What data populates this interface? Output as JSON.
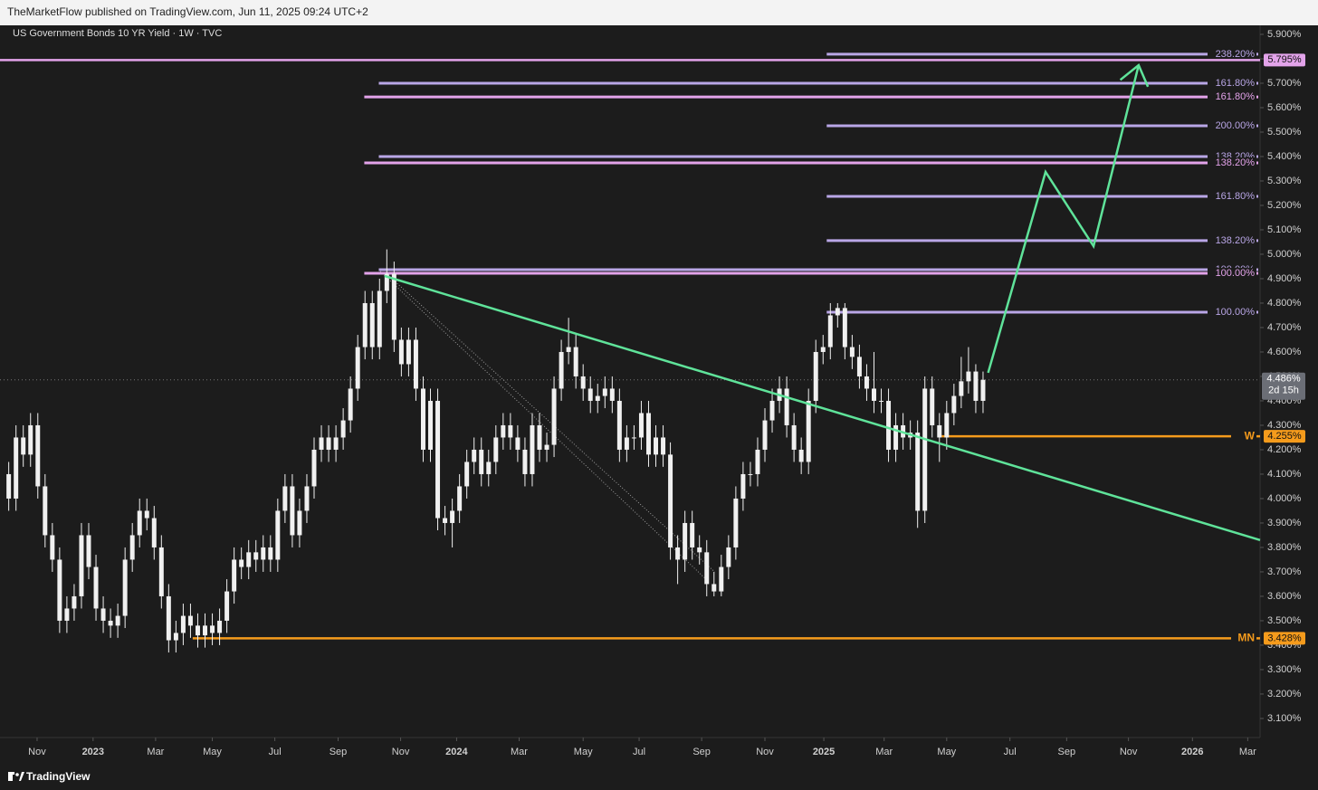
{
  "header": {
    "publisher": "TheMarketFlow published on TradingView.com, Jun 11, 2025 09:24 UTC+2",
    "footer": "TradingView"
  },
  "chart_data": {
    "type": "candlestick",
    "title": "US Government Bonds 10 YR Yield · 1W · TVC",
    "color": "#f0f0f0",
    "candles": [
      [
        4.1,
        4.15,
        3.95,
        4.0
      ],
      [
        4.0,
        4.3,
        3.95,
        4.25
      ],
      [
        4.25,
        4.3,
        4.13,
        4.18
      ],
      [
        4.18,
        4.35,
        4.13,
        4.3
      ],
      [
        4.3,
        4.35,
        4.0,
        4.05
      ],
      [
        4.05,
        4.1,
        3.8,
        3.85
      ],
      [
        3.85,
        3.9,
        3.7,
        3.75
      ],
      [
        3.75,
        3.8,
        3.45,
        3.5
      ],
      [
        3.5,
        3.6,
        3.45,
        3.55
      ],
      [
        3.55,
        3.65,
        3.5,
        3.6
      ],
      [
        3.6,
        3.9,
        3.55,
        3.85
      ],
      [
        3.85,
        3.9,
        3.67,
        3.72
      ],
      [
        3.72,
        3.77,
        3.5,
        3.55
      ],
      [
        3.55,
        3.6,
        3.45,
        3.5
      ],
      [
        3.5,
        3.55,
        3.43,
        3.48
      ],
      [
        3.48,
        3.57,
        3.43,
        3.52
      ],
      [
        3.52,
        3.8,
        3.47,
        3.75
      ],
      [
        3.75,
        3.9,
        3.7,
        3.85
      ],
      [
        3.85,
        4.0,
        3.8,
        3.95
      ],
      [
        3.95,
        4.0,
        3.87,
        3.92
      ],
      [
        3.92,
        3.97,
        3.75,
        3.8
      ],
      [
        3.8,
        3.85,
        3.55,
        3.6
      ],
      [
        3.6,
        3.65,
        3.37,
        3.42
      ],
      [
        3.42,
        3.5,
        3.37,
        3.45
      ],
      [
        3.45,
        3.57,
        3.4,
        3.52
      ],
      [
        3.52,
        3.57,
        3.43,
        3.48
      ],
      [
        3.48,
        3.53,
        3.39,
        3.44
      ],
      [
        3.44,
        3.53,
        3.39,
        3.48
      ],
      [
        3.48,
        3.53,
        3.4,
        3.45
      ],
      [
        3.45,
        3.55,
        3.4,
        3.5
      ],
      [
        3.5,
        3.67,
        3.45,
        3.62
      ],
      [
        3.62,
        3.8,
        3.57,
        3.75
      ],
      [
        3.75,
        3.8,
        3.67,
        3.72
      ],
      [
        3.72,
        3.83,
        3.67,
        3.78
      ],
      [
        3.78,
        3.83,
        3.7,
        3.75
      ],
      [
        3.75,
        3.85,
        3.7,
        3.8
      ],
      [
        3.8,
        3.85,
        3.7,
        3.75
      ],
      [
        3.75,
        4.0,
        3.7,
        3.95
      ],
      [
        3.95,
        4.1,
        3.9,
        4.05
      ],
      [
        4.05,
        4.1,
        3.8,
        3.85
      ],
      [
        3.85,
        4.0,
        3.8,
        3.95
      ],
      [
        3.95,
        4.1,
        3.9,
        4.05
      ],
      [
        4.05,
        4.25,
        4.0,
        4.2
      ],
      [
        4.2,
        4.3,
        4.15,
        4.25
      ],
      [
        4.25,
        4.3,
        4.15,
        4.2
      ],
      [
        4.2,
        4.3,
        4.15,
        4.25
      ],
      [
        4.25,
        4.37,
        4.2,
        4.32
      ],
      [
        4.32,
        4.5,
        4.27,
        4.45
      ],
      [
        4.45,
        4.67,
        4.4,
        4.62
      ],
      [
        4.62,
        4.85,
        4.57,
        4.8
      ],
      [
        4.8,
        4.85,
        4.57,
        4.62
      ],
      [
        4.62,
        4.9,
        4.57,
        4.85
      ],
      [
        4.85,
        5.02,
        4.8,
        4.92
      ],
      [
        4.92,
        4.97,
        4.6,
        4.65
      ],
      [
        4.65,
        4.7,
        4.5,
        4.55
      ],
      [
        4.55,
        4.7,
        4.5,
        4.65
      ],
      [
        4.65,
        4.7,
        4.4,
        4.45
      ],
      [
        4.45,
        4.5,
        4.15,
        4.2
      ],
      [
        4.2,
        4.45,
        4.15,
        4.4
      ],
      [
        4.4,
        4.45,
        3.87,
        3.92
      ],
      [
        3.92,
        3.97,
        3.85,
        3.9
      ],
      [
        3.9,
        4.0,
        3.8,
        3.95
      ],
      [
        3.95,
        4.1,
        3.9,
        4.05
      ],
      [
        4.05,
        4.2,
        4.0,
        4.15
      ],
      [
        4.15,
        4.25,
        4.1,
        4.2
      ],
      [
        4.2,
        4.25,
        4.05,
        4.1
      ],
      [
        4.1,
        4.2,
        4.05,
        4.15
      ],
      [
        4.15,
        4.3,
        4.1,
        4.25
      ],
      [
        4.25,
        4.35,
        4.2,
        4.3
      ],
      [
        4.3,
        4.35,
        4.2,
        4.25
      ],
      [
        4.25,
        4.3,
        4.15,
        4.2
      ],
      [
        4.2,
        4.25,
        4.05,
        4.1
      ],
      [
        4.1,
        4.35,
        4.05,
        4.3
      ],
      [
        4.3,
        4.35,
        4.15,
        4.2
      ],
      [
        4.2,
        4.27,
        4.15,
        4.22
      ],
      [
        4.22,
        4.5,
        4.17,
        4.45
      ],
      [
        4.45,
        4.65,
        4.4,
        4.6
      ],
      [
        4.6,
        4.74,
        4.55,
        4.62
      ],
      [
        4.62,
        4.67,
        4.45,
        4.5
      ],
      [
        4.5,
        4.55,
        4.4,
        4.45
      ],
      [
        4.45,
        4.5,
        4.35,
        4.4
      ],
      [
        4.4,
        4.47,
        4.35,
        4.42
      ],
      [
        4.42,
        4.5,
        4.37,
        4.45
      ],
      [
        4.45,
        4.5,
        4.35,
        4.4
      ],
      [
        4.4,
        4.45,
        4.15,
        4.2
      ],
      [
        4.2,
        4.3,
        4.15,
        4.25
      ],
      [
        4.25,
        4.3,
        4.2,
        4.25
      ],
      [
        4.25,
        4.4,
        4.2,
        4.35
      ],
      [
        4.35,
        4.4,
        4.13,
        4.18
      ],
      [
        4.18,
        4.3,
        4.13,
        4.25
      ],
      [
        4.25,
        4.3,
        4.13,
        4.18
      ],
      [
        4.18,
        4.23,
        3.75,
        3.8
      ],
      [
        3.8,
        3.85,
        3.65,
        3.75
      ],
      [
        3.75,
        3.95,
        3.7,
        3.9
      ],
      [
        3.9,
        3.95,
        3.75,
        3.8
      ],
      [
        3.8,
        3.85,
        3.73,
        3.78
      ],
      [
        3.78,
        3.83,
        3.6,
        3.65
      ],
      [
        3.65,
        3.7,
        3.6,
        3.62
      ],
      [
        3.62,
        3.77,
        3.6,
        3.72
      ],
      [
        3.72,
        3.85,
        3.67,
        3.8
      ],
      [
        3.8,
        4.05,
        3.75,
        4.0
      ],
      [
        4.0,
        4.15,
        3.95,
        4.1
      ],
      [
        4.1,
        4.15,
        4.05,
        4.1
      ],
      [
        4.1,
        4.25,
        4.05,
        4.2
      ],
      [
        4.2,
        4.37,
        4.15,
        4.32
      ],
      [
        4.32,
        4.45,
        4.27,
        4.4
      ],
      [
        4.4,
        4.5,
        4.35,
        4.45
      ],
      [
        4.45,
        4.5,
        4.25,
        4.3
      ],
      [
        4.3,
        4.35,
        4.15,
        4.2
      ],
      [
        4.2,
        4.25,
        4.1,
        4.15
      ],
      [
        4.15,
        4.45,
        4.1,
        4.4
      ],
      [
        4.4,
        4.65,
        4.35,
        4.6
      ],
      [
        4.6,
        4.67,
        4.55,
        4.62
      ],
      [
        4.62,
        4.8,
        4.57,
        4.75
      ],
      [
        4.75,
        4.8,
        4.7,
        4.78
      ],
      [
        4.78,
        4.8,
        4.57,
        4.62
      ],
      [
        4.62,
        4.67,
        4.53,
        4.58
      ],
      [
        4.58,
        4.63,
        4.45,
        4.5
      ],
      [
        4.5,
        4.55,
        4.4,
        4.45
      ],
      [
        4.45,
        4.6,
        4.35,
        4.4
      ],
      [
        4.4,
        4.45,
        4.35,
        4.4
      ],
      [
        4.4,
        4.45,
        4.15,
        4.2
      ],
      [
        4.2,
        4.35,
        4.15,
        4.3
      ],
      [
        4.3,
        4.35,
        4.2,
        4.25
      ],
      [
        4.25,
        4.32,
        4.2,
        4.27
      ],
      [
        4.27,
        4.32,
        3.88,
        3.95
      ],
      [
        3.95,
        4.5,
        3.9,
        4.45
      ],
      [
        4.45,
        4.5,
        4.25,
        4.3
      ],
      [
        4.3,
        4.35,
        4.15,
        4.25
      ],
      [
        4.25,
        4.4,
        4.2,
        4.35
      ],
      [
        4.35,
        4.47,
        4.3,
        4.42
      ],
      [
        4.42,
        4.58,
        4.37,
        4.48
      ],
      [
        4.48,
        4.62,
        4.43,
        4.52
      ],
      [
        4.52,
        4.55,
        4.35,
        4.4
      ],
      [
        4.4,
        4.52,
        4.35,
        4.486
      ]
    ],
    "xlim": [
      -1.2,
      172.1
    ],
    "xticks": [
      {
        "value": 3.9,
        "label": "Nov"
      },
      {
        "value": 11.6,
        "label": "2023"
      },
      {
        "value": 20.2,
        "label": "Mar"
      },
      {
        "value": 28.0,
        "label": "May"
      },
      {
        "value": 36.6,
        "label": "Jul"
      },
      {
        "value": 45.3,
        "label": "Sep"
      },
      {
        "value": 53.9,
        "label": "Nov"
      },
      {
        "value": 61.6,
        "label": "2024"
      },
      {
        "value": 70.2,
        "label": "Mar"
      },
      {
        "value": 79.0,
        "label": "May"
      },
      {
        "value": 86.7,
        "label": "Jul"
      },
      {
        "value": 95.3,
        "label": "Sep"
      },
      {
        "value": 104.0,
        "label": "Nov"
      },
      {
        "value": 112.1,
        "label": "2025"
      },
      {
        "value": 120.4,
        "label": "Mar"
      },
      {
        "value": 129.0,
        "label": "May"
      },
      {
        "value": 137.7,
        "label": "Jul"
      },
      {
        "value": 145.5,
        "label": "Sep"
      },
      {
        "value": 154.0,
        "label": "Nov"
      },
      {
        "value": 162.8,
        "label": "2026"
      },
      {
        "value": 170.4,
        "label": "Mar"
      }
    ],
    "ylim": [
      3.022,
      5.937
    ],
    "yticks": [
      {
        "value": 5.9,
        "label": "5.900%"
      },
      {
        "value": 5.8,
        "label": "5.800%"
      },
      {
        "value": 5.7,
        "label": "5.700%"
      },
      {
        "value": 5.6,
        "label": "5.600%"
      },
      {
        "value": 5.5,
        "label": "5.500%"
      },
      {
        "value": 5.4,
        "label": "5.400%"
      },
      {
        "value": 5.3,
        "label": "5.300%"
      },
      {
        "value": 5.2,
        "label": "5.200%"
      },
      {
        "value": 5.1,
        "label": "5.100%"
      },
      {
        "value": 5.0,
        "label": "5.000%"
      },
      {
        "value": 4.9,
        "label": "4.900%"
      },
      {
        "value": 4.8,
        "label": "4.800%"
      },
      {
        "value": 4.7,
        "label": "4.700%"
      },
      {
        "value": 4.6,
        "label": "4.600%"
      },
      {
        "value": 4.5,
        "label": "4.500%"
      },
      {
        "value": 4.4,
        "label": "4.400%"
      },
      {
        "value": 4.3,
        "label": "4.300%"
      },
      {
        "value": 4.2,
        "label": "4.200%"
      },
      {
        "value": 4.1,
        "label": "4.100%"
      },
      {
        "value": 4.0,
        "label": "4.000%"
      },
      {
        "value": 3.9,
        "label": "3.900%"
      },
      {
        "value": 3.8,
        "label": "3.800%"
      },
      {
        "value": 3.7,
        "label": "3.700%"
      },
      {
        "value": 3.6,
        "label": "3.600%"
      },
      {
        "value": 3.5,
        "label": "3.500%"
      },
      {
        "value": 3.4,
        "label": "3.400%"
      },
      {
        "value": 3.3,
        "label": "3.300%"
      },
      {
        "value": 3.2,
        "label": "3.200%"
      },
      {
        "value": 3.1,
        "label": "3.100%"
      }
    ],
    "last_price": {
      "value": 4.486,
      "label": "4.486%",
      "countdown": "2d 15h"
    },
    "levels": [
      {
        "label": "238.20%",
        "value": 5.819,
        "start": 112.5,
        "color": "#b9a6e6"
      },
      {
        "label": "161.80%",
        "value": 5.7,
        "start": 50.9,
        "color": "#b9a6e6"
      },
      {
        "label": "161.80%",
        "value": 5.644,
        "start": 48.9,
        "color": "#e3a3ea"
      },
      {
        "label": "200.00%",
        "value": 5.526,
        "start": 112.5,
        "color": "#b9a6e6"
      },
      {
        "label": "138.20%",
        "value": 5.4,
        "start": 50.9,
        "color": "#b9a6e6"
      },
      {
        "label": "138.20%",
        "value": 5.374,
        "start": 48.9,
        "color": "#e3a3ea"
      },
      {
        "label": "161.80%",
        "value": 5.237,
        "start": 112.5,
        "color": "#b9a6e6"
      },
      {
        "label": "138.20%",
        "value": 5.056,
        "start": 112.5,
        "color": "#b9a6e6"
      },
      {
        "label": "100.00%",
        "value": 4.937,
        "start": 50.9,
        "color": "#b9a6e6"
      },
      {
        "label": "100.00%",
        "value": 4.922,
        "start": 48.9,
        "color": "#e3a3ea"
      },
      {
        "label": "100.00%",
        "value": 4.763,
        "start": 112.5,
        "color": "#b9a6e6"
      }
    ],
    "horizontal_lines": [
      {
        "value": 5.795,
        "label": "5.795%",
        "start": -1.2,
        "color": "#e3a3ea"
      },
      {
        "name": "W",
        "value": 4.255,
        "label": "4.255%",
        "start": 128.3,
        "color": "#f59b1c"
      },
      {
        "name": "MN",
        "value": 3.428,
        "label": "3.428%",
        "start": 25.3,
        "color": "#f59b1c"
      }
    ],
    "trendline": {
      "points": [
        [
          51.7,
          4.911
        ],
        [
          172.1,
          3.83
        ]
      ],
      "color": "#5fe39a"
    },
    "projection": {
      "points": [
        [
          134.7,
          4.515
        ],
        [
          142.6,
          5.337
        ],
        [
          149.2,
          5.033
        ],
        [
          155.4,
          5.774
        ]
      ],
      "color": "#5fe39a"
    },
    "dotted_lines": [
      [
        [
          51.1,
          4.93
        ],
        [
          95.9,
          3.67
        ]
      ],
      [
        [
          52.3,
          4.911
        ],
        [
          97.1,
          3.7
        ]
      ]
    ]
  }
}
